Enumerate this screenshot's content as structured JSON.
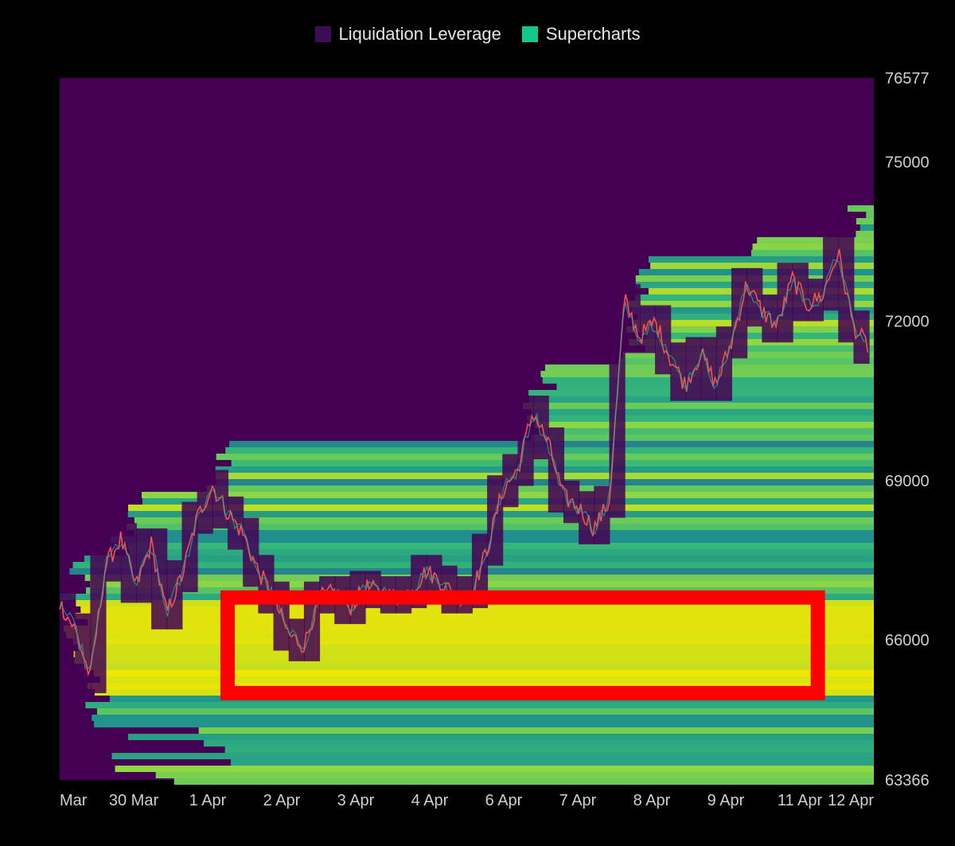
{
  "legend": [
    {
      "label": "Liquidation Leverage",
      "color": "#3d0c54"
    },
    {
      "label": "Supercharts",
      "color": "#12c98a"
    }
  ],
  "colors": {
    "background": "#000000",
    "heat_low": "#440154",
    "heat_mid": "#21918c",
    "heat_high": "#f2e600",
    "candle_up": "#26a69a",
    "candle_down": "#ef5350",
    "highlight_box": "#ff0000"
  },
  "chart_data": {
    "type": "heatmap",
    "title": "",
    "legend_position": "top-center",
    "x_ticks": [
      "Mar",
      "30 Mar",
      "1 Apr",
      "2 Apr",
      "3 Apr",
      "4 Apr",
      "6 Apr",
      "7 Apr",
      "8 Apr",
      "9 Apr",
      "11 Apr",
      "12 Apr"
    ],
    "y_ticks": [
      76577,
      75000,
      72000,
      69000,
      66000,
      63366
    ],
    "y_range": [
      63366,
      76577
    ],
    "price_path": [
      {
        "x": 0.0,
        "y": 66700
      },
      {
        "x": 0.3,
        "y": 66200
      },
      {
        "x": 0.6,
        "y": 65300
      },
      {
        "x": 0.9,
        "y": 67400
      },
      {
        "x": 1.2,
        "y": 67900
      },
      {
        "x": 1.5,
        "y": 67000
      },
      {
        "x": 1.8,
        "y": 67800
      },
      {
        "x": 2.1,
        "y": 66500
      },
      {
        "x": 2.4,
        "y": 67200
      },
      {
        "x": 2.7,
        "y": 68300
      },
      {
        "x": 3.0,
        "y": 68900
      },
      {
        "x": 3.3,
        "y": 68400
      },
      {
        "x": 3.6,
        "y": 68000
      },
      {
        "x": 3.9,
        "y": 67300
      },
      {
        "x": 4.2,
        "y": 66800
      },
      {
        "x": 4.5,
        "y": 66100
      },
      {
        "x": 4.8,
        "y": 65900
      },
      {
        "x": 5.1,
        "y": 66800
      },
      {
        "x": 5.4,
        "y": 66900
      },
      {
        "x": 5.7,
        "y": 66600
      },
      {
        "x": 6.0,
        "y": 67000
      },
      {
        "x": 6.3,
        "y": 66900
      },
      {
        "x": 6.6,
        "y": 66800
      },
      {
        "x": 6.9,
        "y": 66900
      },
      {
        "x": 7.2,
        "y": 67300
      },
      {
        "x": 7.5,
        "y": 67100
      },
      {
        "x": 7.8,
        "y": 66800
      },
      {
        "x": 8.1,
        "y": 66900
      },
      {
        "x": 8.4,
        "y": 67700
      },
      {
        "x": 8.7,
        "y": 68800
      },
      {
        "x": 9.0,
        "y": 69200
      },
      {
        "x": 9.3,
        "y": 70300
      },
      {
        "x": 9.6,
        "y": 69700
      },
      {
        "x": 9.9,
        "y": 68700
      },
      {
        "x": 10.2,
        "y": 68500
      },
      {
        "x": 10.5,
        "y": 68100
      },
      {
        "x": 10.8,
        "y": 68600
      },
      {
        "x": 11.1,
        "y": 72400
      },
      {
        "x": 11.4,
        "y": 71700
      },
      {
        "x": 11.7,
        "y": 72000
      },
      {
        "x": 12.0,
        "y": 71300
      },
      {
        "x": 12.3,
        "y": 70800
      },
      {
        "x": 12.6,
        "y": 71400
      },
      {
        "x": 12.9,
        "y": 70800
      },
      {
        "x": 13.2,
        "y": 71600
      },
      {
        "x": 13.5,
        "y": 72700
      },
      {
        "x": 13.8,
        "y": 72200
      },
      {
        "x": 14.1,
        "y": 71900
      },
      {
        "x": 14.4,
        "y": 72800
      },
      {
        "x": 14.7,
        "y": 72300
      },
      {
        "x": 15.0,
        "y": 72500
      },
      {
        "x": 15.3,
        "y": 73300
      },
      {
        "x": 15.6,
        "y": 71900
      },
      {
        "x": 15.9,
        "y": 71500
      }
    ],
    "price_range_x": [
      0,
      16
    ],
    "highlight_box": {
      "y_top": 66800,
      "y_bottom": 65000,
      "x_start": 3.3,
      "x_end": 14.9
    }
  }
}
